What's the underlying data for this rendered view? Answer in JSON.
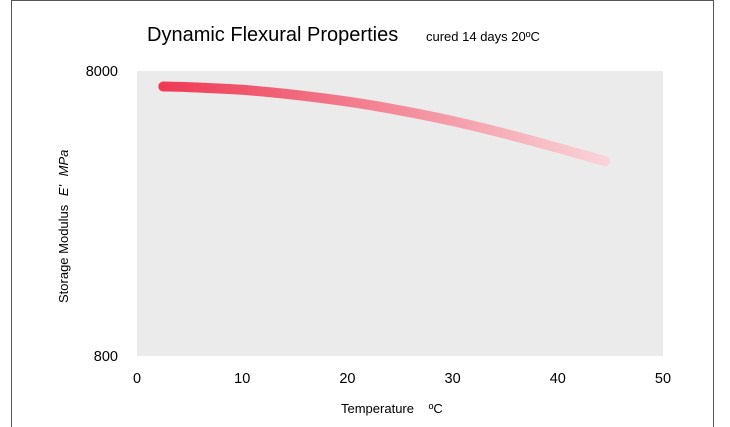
{
  "chart_data": {
    "type": "line",
    "title": "Dynamic Flexural Properties",
    "subtitle": "cured 14 days 20ºC",
    "xlabel": "Temperature",
    "xlabel_unit": "ºC",
    "ylabel": "Storage Modulus",
    "ylabel_symbol": "E'",
    "ylabel_unit": "MPa",
    "xlim": [
      0,
      50
    ],
    "ylim": [
      800,
      8000
    ],
    "yscale": "log",
    "x_ticks": [
      0,
      10,
      20,
      30,
      40,
      50
    ],
    "x_tick_labels": [
      "0",
      "10",
      "20",
      "30",
      "40",
      "50"
    ],
    "y_ticks": [
      800,
      8000
    ],
    "y_tick_labels": [
      "800",
      "8000"
    ],
    "grid": false,
    "plot_background": "#ebebeb",
    "series": [
      {
        "gradient_start": "#ee3a55",
        "gradient_end": "#f9d3d8",
        "x": [
          2.5,
          5,
          10,
          15,
          20,
          25,
          30,
          35,
          40,
          44.5
        ],
        "y": [
          7060,
          7020,
          6870,
          6600,
          6250,
          5820,
          5340,
          4820,
          4300,
          3860
        ]
      }
    ]
  }
}
